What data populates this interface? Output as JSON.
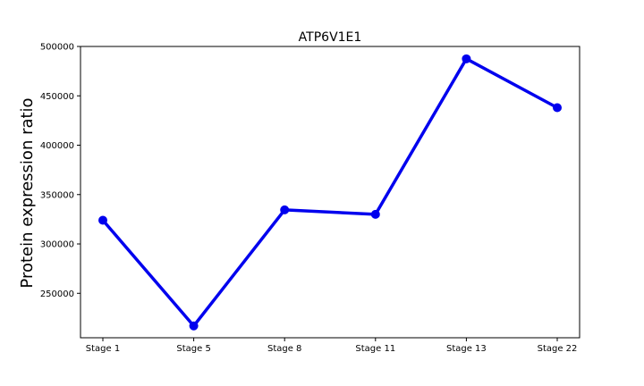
{
  "chart_data": {
    "type": "line",
    "title": "ATP6V1E1",
    "xlabel": "",
    "ylabel": "Protein expression ratio",
    "categories": [
      "Stage 1",
      "Stage 5",
      "Stage 8",
      "Stage 11",
      "Stage 13",
      "Stage 22"
    ],
    "series": [
      {
        "values": [
          324000,
          217000,
          334500,
          330000,
          487500,
          438000
        ]
      }
    ],
    "ylim": [
      205000,
      500000
    ],
    "yticks": [
      250000,
      300000,
      350000,
      400000,
      450000,
      500000
    ],
    "ytick_labels": [
      "250000",
      "300000",
      "350000",
      "400000",
      "450000",
      "500000"
    ],
    "line_color": "#0000ee",
    "grid": false,
    "legend": "none"
  }
}
